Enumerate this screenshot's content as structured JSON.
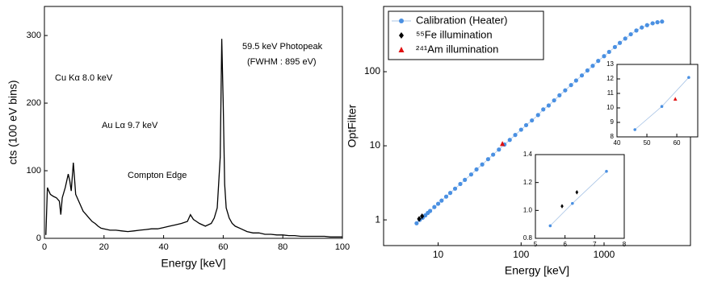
{
  "chart_data": [
    {
      "type": "line",
      "xlabel": "Energy [keV]",
      "ylabel": "cts (100 eV bins)",
      "xlim": [
        0,
        100
      ],
      "ylim": [
        0,
        343
      ],
      "xticks": [
        0,
        20,
        40,
        60,
        80,
        100
      ],
      "yticks": [
        0,
        100,
        200,
        300
      ],
      "color": "#000000",
      "x": [
        0.5,
        1,
        1.5,
        2,
        3,
        4,
        5,
        5.5,
        6,
        7,
        8,
        8.5,
        9,
        9.7,
        10,
        10.5,
        11,
        12,
        13,
        14,
        15,
        16,
        17,
        18,
        19,
        20,
        22,
        24,
        26,
        28,
        30,
        32,
        34,
        36,
        38,
        40,
        42,
        44,
        46,
        48,
        49,
        50,
        51,
        52,
        54,
        56,
        57,
        58,
        59,
        59.5,
        60,
        60.5,
        61,
        62,
        63,
        64,
        66,
        68,
        70,
        72,
        74,
        76,
        78,
        80,
        82,
        84,
        86,
        88,
        90,
        92,
        94,
        96,
        98,
        100
      ],
      "values": [
        5,
        75,
        70,
        65,
        62,
        60,
        55,
        35,
        60,
        75,
        95,
        85,
        70,
        112,
        95,
        65,
        60,
        50,
        40,
        35,
        30,
        25,
        22,
        18,
        15,
        14,
        12,
        12,
        11,
        10,
        11,
        12,
        13,
        14,
        14,
        16,
        18,
        20,
        22,
        25,
        35,
        28,
        25,
        22,
        18,
        22,
        30,
        45,
        120,
        295,
        200,
        80,
        45,
        30,
        22,
        18,
        14,
        10,
        8,
        8,
        6,
        6,
        5,
        5,
        4,
        4,
        3,
        3,
        3,
        3,
        3,
        2,
        2,
        2
      ],
      "annotations": [
        "Cu Kα 8.0 keV",
        "Au Lα 9.7 keV",
        "Compton Edge",
        "59.5 keV Photopeak",
        "(FWHM : 895 eV)"
      ]
    },
    {
      "type": "scatter",
      "xlabel": "Energy [keV]",
      "ylabel": "OptFilter",
      "xscale": "log",
      "yscale": "log",
      "xlim": [
        2.2,
        11000
      ],
      "ylim": [
        0.45,
        760
      ],
      "xticks": [
        10,
        100,
        1000
      ],
      "yticks": [
        1,
        10,
        100
      ],
      "legend": "upper left",
      "series": [
        {
          "name": "Calibration (Heater)",
          "color": "#4a90e2",
          "marker": "circle",
          "line": true,
          "x": [
            5.5,
            6,
            6.5,
            7,
            7.5,
            8,
            9,
            10,
            11,
            12.5,
            14,
            16,
            18.5,
            21,
            25,
            29,
            34,
            40,
            46,
            54,
            63,
            73,
            85,
            100,
            115,
            135,
            160,
            185,
            215,
            250,
            290,
            340,
            400,
            460,
            540,
            630,
            730,
            850,
            1000,
            1150,
            1350,
            1550,
            1800,
            2100,
            2450,
            2850,
            3300,
            3850,
            4400,
            5000
          ],
          "values": [
            0.9,
            1.0,
            1.07,
            1.15,
            1.24,
            1.32,
            1.49,
            1.65,
            1.82,
            2.06,
            2.31,
            2.64,
            3.05,
            3.47,
            4.1,
            4.8,
            5.6,
            6.6,
            7.6,
            8.9,
            10.4,
            12,
            14,
            16.5,
            19,
            22,
            26,
            31,
            35,
            41,
            48,
            56,
            66,
            76,
            89,
            104,
            120,
            140,
            162,
            185,
            215,
            245,
            280,
            320,
            360,
            395,
            425,
            450,
            465,
            475
          ]
        },
        {
          "name": "⁵⁵Fe illumination",
          "color": "#000000",
          "marker": "diamond",
          "x": [
            5.9,
            6.4
          ],
          "values": [
            1.03,
            1.12
          ]
        },
        {
          "name": "²⁴¹Am illumination",
          "color": "#e01010",
          "marker": "triangle",
          "x": [
            59.5
          ],
          "values": [
            10.6
          ]
        }
      ]
    },
    {
      "type": "scatter",
      "xlim": [
        5,
        8
      ],
      "ylim": [
        0.8,
        1.4
      ],
      "xticks": [
        5,
        6,
        7,
        8
      ],
      "yticks": [
        0.8,
        {
          "value": 1.0,
          "label": "1.0"
        },
        1.2,
        1.4
      ],
      "series": [
        {
          "color": "#4a90e2",
          "marker": "circle",
          "line": true,
          "x": [
            5.5,
            6.25,
            7.4
          ],
          "values": [
            0.89,
            1.05,
            1.28
          ]
        },
        {
          "color": "#000000",
          "marker": "diamond",
          "x": [
            5.9,
            6.4
          ],
          "values": [
            1.03,
            1.13
          ]
        }
      ]
    },
    {
      "type": "scatter",
      "xlim": [
        40,
        67
      ],
      "ylim": [
        8,
        13
      ],
      "xticks": [
        40,
        50,
        60
      ],
      "yticks": [
        8,
        9,
        10,
        11,
        12,
        13
      ],
      "series": [
        {
          "color": "#4a90e2",
          "marker": "circle",
          "line": true,
          "x": [
            46,
            55,
            64
          ],
          "values": [
            8.5,
            10.1,
            12.1
          ]
        },
        {
          "color": "#e01010",
          "marker": "triangle",
          "x": [
            59.5
          ],
          "values": [
            10.6
          ]
        }
      ]
    }
  ]
}
